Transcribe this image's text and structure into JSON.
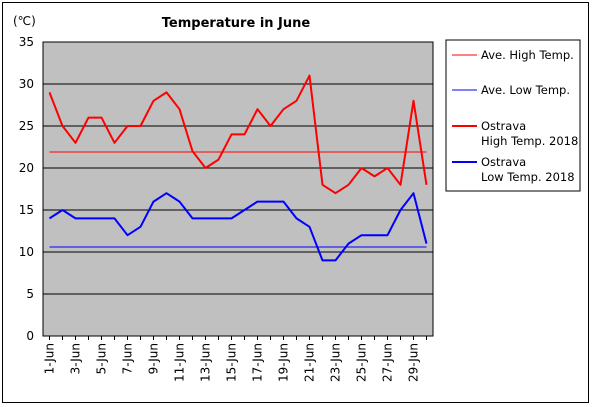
{
  "chart_data": {
    "type": "line",
    "title": "Temperature in June",
    "unit_label": "(℃)",
    "ylim": [
      0,
      35
    ],
    "y_ticks": [
      0,
      5,
      10,
      15,
      20,
      25,
      30,
      35
    ],
    "x_tick_labels": [
      "1-Jun",
      "3-Jun",
      "5-Jun",
      "7-Jun",
      "9-Jun",
      "11-Jun",
      "13-Jun",
      "15-Jun",
      "17-Jun",
      "19-Jun",
      "21-Jun",
      "23-Jun",
      "25-Jun",
      "27-Jun",
      "29-Jun"
    ],
    "x_tick_days": [
      1,
      3,
      5,
      7,
      9,
      11,
      13,
      15,
      17,
      19,
      21,
      23,
      25,
      27,
      29
    ],
    "x_days": [
      1,
      2,
      3,
      4,
      5,
      6,
      7,
      8,
      9,
      10,
      11,
      12,
      13,
      14,
      15,
      16,
      17,
      18,
      19,
      20,
      21,
      22,
      23,
      24,
      25,
      26,
      27,
      28,
      29,
      30
    ],
    "grid": "horizontal",
    "legend_position": "right",
    "series": [
      {
        "name": "Ave. High Temp.",
        "color": "#ff0000",
        "width": 1,
        "kind": "constant",
        "value": 21.9
      },
      {
        "name": "Ave. Low Temp.",
        "color": "#0000ff",
        "width": 1,
        "kind": "constant",
        "value": 10.6
      },
      {
        "name": "Ostrava High Temp. 2018",
        "legend_lines": [
          "Ostrava",
          "High Temp. 2018"
        ],
        "color": "#ff0000",
        "width": 2,
        "values": [
          29,
          25,
          23,
          26,
          26,
          23,
          25,
          25,
          28,
          29,
          27,
          22,
          20,
          21,
          24,
          24,
          27,
          25,
          27,
          28,
          31,
          18,
          17,
          18,
          20,
          19,
          20,
          18,
          28,
          18
        ]
      },
      {
        "name": "Ostrava Low Temp. 2018",
        "legend_lines": [
          "Ostrava",
          "Low Temp. 2018"
        ],
        "color": "#0000ff",
        "width": 2,
        "values": [
          14,
          15,
          14,
          14,
          14,
          14,
          12,
          13,
          16,
          17,
          16,
          14,
          14,
          14,
          14,
          15,
          16,
          16,
          16,
          14,
          13,
          9,
          9,
          11,
          12,
          12,
          12,
          15,
          17,
          11
        ]
      }
    ]
  }
}
